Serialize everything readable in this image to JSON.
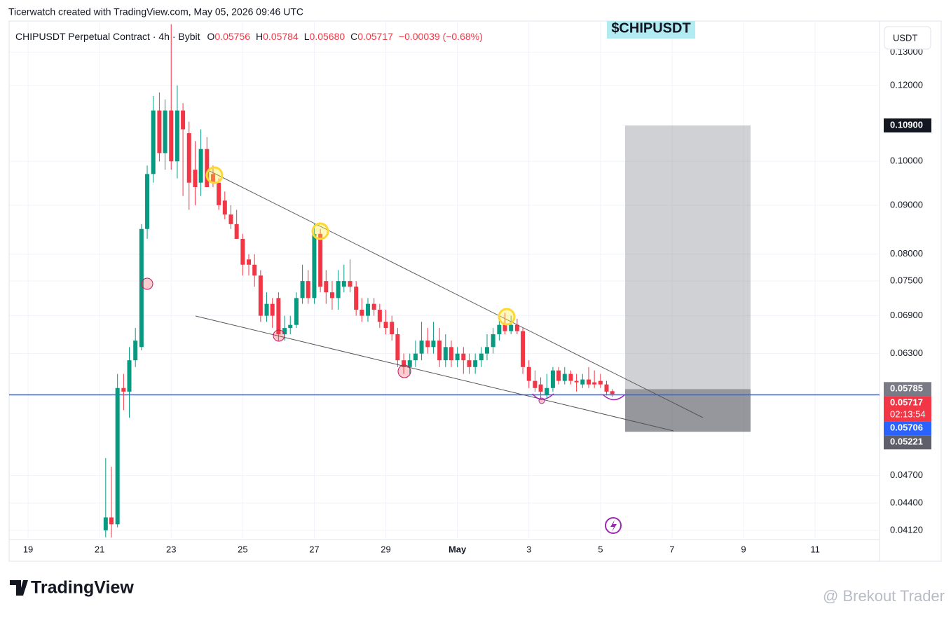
{
  "credit": "Ticerwatch created with TradingView.com, May 05, 2026 09:46 UTC",
  "logo": "TradingView",
  "watermark": "@ Brekout Trader",
  "currency": "USDT",
  "ticker_label": "$CHIPUSDT",
  "chart_data": {
    "type": "candlestick",
    "title": "CHIPUSDT Perpetual Contract · 4h · Bybit",
    "ohlc_legend": [
      {
        "label": "O",
        "value": "0.05756"
      },
      {
        "label": "H",
        "value": "0.05784"
      },
      {
        "label": "L",
        "value": "0.05680"
      },
      {
        "label": "C",
        "value": "0.05717"
      }
    ],
    "change": "−0.00039 (−0.68%)",
    "up_color": "#089981",
    "down_color": "#f23645",
    "log_scale": true,
    "grid": true,
    "xlim": [
      18.47,
      42.8
    ],
    "ylim": [
      0.0403,
      0.1401
    ],
    "xticks": [
      19,
      21,
      23,
      25,
      27,
      29,
      {
        "value": 31,
        "label": "May"
      },
      {
        "value": 33,
        "label": "3"
      },
      {
        "value": 35,
        "label": "5"
      },
      {
        "value": 37,
        "label": "7"
      },
      {
        "value": 39,
        "label": "9"
      },
      {
        "value": 41,
        "label": "11"
      }
    ],
    "yticks": [
      {
        "value": 0.13,
        "label": "0.13000"
      },
      {
        "value": 0.12,
        "label": "0.12000"
      },
      {
        "value": 0.1,
        "label": "0.10000"
      },
      {
        "value": 0.09,
        "label": "0.09000"
      },
      {
        "value": 0.08,
        "label": "0.08000"
      },
      {
        "value": 0.075,
        "label": "0.07500"
      },
      {
        "value": 0.069,
        "label": "0.06900"
      },
      {
        "value": 0.063,
        "label": "0.06300"
      },
      {
        "value": 0.047,
        "label": "0.04700"
      },
      {
        "value": 0.044,
        "label": "0.04400"
      },
      {
        "value": 0.0412,
        "label": "0.04120"
      }
    ],
    "x": [
      21.17,
      21.33,
      21.5,
      21.67,
      21.83,
      22,
      22.17,
      22.33,
      22.5,
      22.67,
      22.83,
      23,
      23.17,
      23.33,
      23.5,
      23.67,
      23.83,
      24,
      24.17,
      24.33,
      24.5,
      24.67,
      24.83,
      25,
      25.17,
      25.33,
      25.5,
      25.67,
      25.83,
      26,
      26.17,
      26.33,
      26.5,
      26.67,
      26.83,
      27,
      27.17,
      27.33,
      27.5,
      27.67,
      27.83,
      28,
      28.17,
      28.33,
      28.5,
      28.67,
      28.83,
      29,
      29.17,
      29.33,
      29.5,
      29.67,
      29.83,
      30,
      30.17,
      30.33,
      30.5,
      30.67,
      30.83,
      31,
      31.17,
      31.33,
      31.5,
      31.67,
      31.83,
      32,
      32.17,
      32.33,
      32.5,
      32.67,
      32.83,
      33,
      33.17,
      33.33,
      33.5,
      33.67,
      33.83,
      34,
      34.17,
      34.33,
      34.5,
      34.67,
      34.83,
      35,
      35.17,
      35.33
    ],
    "open": [
      0.0412,
      0.0425,
      0.0418,
      0.058,
      0.0575,
      0.062,
      0.064,
      0.085,
      0.097,
      0.113,
      0.102,
      0.113,
      0.1,
      0.113,
      0.107,
      0.098,
      0.095,
      0.103,
      0.097,
      0.095,
      0.091,
      0.088,
      0.086,
      0.083,
      0.079,
      0.078,
      0.076,
      0.069,
      0.071,
      0.072,
      0.066,
      0.067,
      0.0675,
      0.072,
      0.075,
      0.072,
      0.084,
      0.075,
      0.073,
      0.072,
      0.074,
      0.075,
      0.074,
      0.07,
      0.069,
      0.071,
      0.07,
      0.068,
      0.068,
      0.066,
      0.062,
      0.061,
      0.062,
      0.063,
      0.065,
      0.064,
      0.065,
      0.062,
      0.064,
      0.062,
      0.063,
      0.062,
      0.061,
      0.062,
      0.063,
      0.064,
      0.066,
      0.0675,
      0.0665,
      0.0675,
      0.0665,
      0.061,
      0.059,
      0.0585,
      0.057,
      0.058,
      0.0605,
      0.059,
      0.06,
      0.059,
      0.0585,
      0.0592,
      0.0588,
      0.059,
      0.0585,
      0.05756
    ],
    "high": [
      0.049,
      0.048,
      0.06,
      0.06,
      0.064,
      0.067,
      0.086,
      0.099,
      0.117,
      0.118,
      0.116,
      0.139,
      0.12,
      0.115,
      0.11,
      0.105,
      0.108,
      0.106,
      0.099,
      0.096,
      0.093,
      0.09,
      0.089,
      0.084,
      0.08,
      0.08,
      0.077,
      0.073,
      0.072,
      0.073,
      0.069,
      0.069,
      0.073,
      0.078,
      0.077,
      0.086,
      0.085,
      0.077,
      0.075,
      0.077,
      0.078,
      0.079,
      0.075,
      0.072,
      0.072,
      0.072,
      0.071,
      0.07,
      0.069,
      0.067,
      0.063,
      0.063,
      0.065,
      0.068,
      0.067,
      0.068,
      0.067,
      0.066,
      0.065,
      0.064,
      0.064,
      0.063,
      0.063,
      0.064,
      0.066,
      0.067,
      0.069,
      0.0695,
      0.069,
      0.0685,
      0.067,
      0.062,
      0.0605,
      0.0595,
      0.06,
      0.061,
      0.061,
      0.061,
      0.0605,
      0.06,
      0.06,
      0.061,
      0.0605,
      0.06,
      0.059,
      0.05784
    ],
    "low": [
      0.0405,
      0.0405,
      0.0415,
      0.055,
      0.054,
      0.061,
      0.0635,
      0.083,
      0.095,
      0.1,
      0.098,
      0.098,
      0.096,
      0.092,
      0.089,
      0.09,
      0.092,
      0.094,
      0.094,
      0.089,
      0.087,
      0.085,
      0.083,
      0.076,
      0.076,
      0.074,
      0.068,
      0.068,
      0.067,
      0.065,
      0.065,
      0.066,
      0.067,
      0.071,
      0.071,
      0.071,
      0.073,
      0.071,
      0.07,
      0.07,
      0.073,
      0.073,
      0.069,
      0.068,
      0.068,
      0.069,
      0.067,
      0.066,
      0.065,
      0.061,
      0.06,
      0.06,
      0.061,
      0.062,
      0.063,
      0.063,
      0.061,
      0.061,
      0.061,
      0.061,
      0.06,
      0.06,
      0.06,
      0.061,
      0.062,
      0.063,
      0.065,
      0.066,
      0.066,
      0.066,
      0.06,
      0.058,
      0.0575,
      0.0565,
      0.0565,
      0.0575,
      0.0585,
      0.0585,
      0.0585,
      0.0575,
      0.058,
      0.058,
      0.058,
      0.058,
      0.057,
      0.0568
    ],
    "close": [
      0.0425,
      0.0418,
      0.058,
      0.0575,
      0.062,
      0.065,
      0.085,
      0.097,
      0.113,
      0.102,
      0.113,
      0.1,
      0.113,
      0.108,
      0.095,
      0.094,
      0.103,
      0.094,
      0.095,
      0.09,
      0.088,
      0.086,
      0.083,
      0.078,
      0.078,
      0.076,
      0.069,
      0.071,
      0.069,
      0.066,
      0.067,
      0.0675,
      0.072,
      0.075,
      0.072,
      0.084,
      0.074,
      0.073,
      0.072,
      0.075,
      0.075,
      0.074,
      0.07,
      0.069,
      0.071,
      0.07,
      0.068,
      0.067,
      0.066,
      0.062,
      0.061,
      0.062,
      0.063,
      0.065,
      0.064,
      0.065,
      0.062,
      0.064,
      0.062,
      0.063,
      0.062,
      0.061,
      0.062,
      0.063,
      0.064,
      0.066,
      0.0675,
      0.0665,
      0.0675,
      0.0665,
      0.061,
      0.059,
      0.058,
      0.0575,
      0.058,
      0.0605,
      0.059,
      0.06,
      0.059,
      0.0588,
      0.0592,
      0.0585,
      0.0585,
      0.0585,
      0.0575,
      0.05717
    ],
    "price_labels": [
      {
        "value": 0.109,
        "label": "0.10900",
        "color": "#131722"
      },
      {
        "value": 0.05785,
        "label": "0.05785",
        "color": "#787b86"
      },
      {
        "value": 0.05717,
        "label": "0.05717",
        "color": "#f23645"
      },
      {
        "value": 0.05706,
        "label": "0.05706",
        "color": "#2962ff"
      },
      {
        "value": 0.05221,
        "label": "0.05221",
        "color": "#5d606b"
      }
    ],
    "countdown": "02:13:54",
    "line_color": "#2962ff"
  }
}
